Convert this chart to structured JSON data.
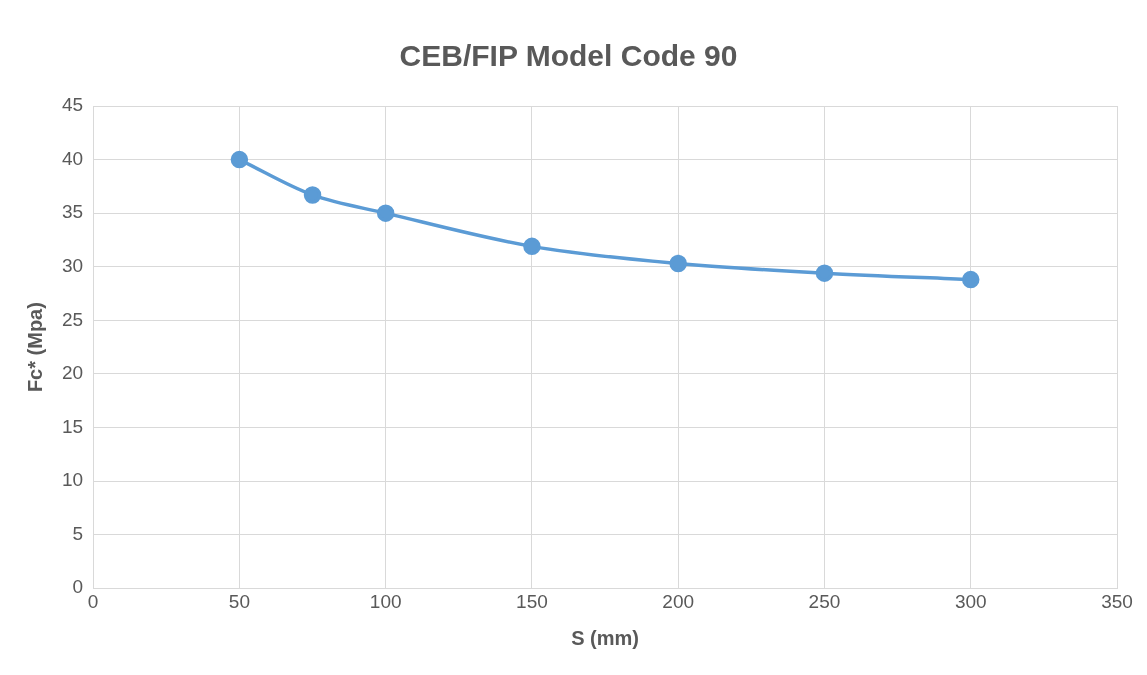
{
  "chart_data": {
    "type": "line",
    "title": "CEB/FIP Model Code 90",
    "xlabel": "S (mm)",
    "ylabel": "Fc* (Mpa)",
    "x": [
      50,
      75,
      100,
      150,
      200,
      250,
      300
    ],
    "series": [
      {
        "color": "#5b9bd5",
        "values": [
          40.0,
          36.7,
          35.0,
          31.9,
          30.3,
          29.4,
          28.8
        ]
      }
    ],
    "xlim": [
      0,
      350
    ],
    "xticks": [
      0,
      50,
      100,
      150,
      200,
      250,
      300,
      350
    ],
    "ylim": [
      0,
      45
    ],
    "yticks": [
      0,
      5,
      10,
      15,
      20,
      25,
      30,
      35,
      40,
      45
    ],
    "grid": true,
    "legend": false,
    "marker": "circle",
    "line_style": "solid"
  }
}
